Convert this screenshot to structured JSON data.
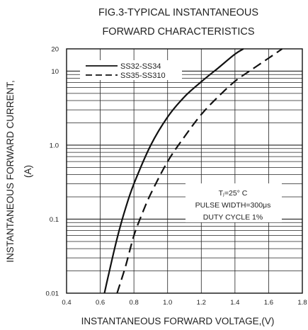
{
  "chart_data": {
    "type": "line",
    "title_lines": [
      "FIG.3-TYPICAL INSTANTANEOUS",
      "FORWARD CHARACTERISTICS"
    ],
    "xlabel": "INSTANTANEOUS FORWARD VOLTAGE,(V)",
    "ylabel_lines": [
      "INSTANTANEOUS FORWARD CURRENT,",
      "(A)"
    ],
    "xlim": [
      0.4,
      1.8
    ],
    "ylim": [
      0.01,
      20
    ],
    "yscale": "log",
    "x_ticks": [
      "0.4",
      "0.6",
      "0.8",
      "1.0",
      "1.2",
      "1.4",
      "1.6",
      "1.8"
    ],
    "y_ticks": [
      {
        "value": 0.01,
        "label": "0.01"
      },
      {
        "value": 0.1,
        "label": "0.1"
      },
      {
        "value": 1,
        "label": "1.0"
      },
      {
        "value": 10,
        "label": "10"
      },
      {
        "value": 20,
        "label": "20"
      }
    ],
    "grid": true,
    "legend_position": "top-left",
    "series": [
      {
        "name": "SS32-SS34",
        "style": "solid",
        "color": "#111111",
        "x": [
          0.625,
          0.65,
          0.7,
          0.75,
          0.8,
          0.9,
          1.0,
          1.1,
          1.2,
          1.3,
          1.4,
          1.45
        ],
        "y": [
          0.01,
          0.018,
          0.055,
          0.14,
          0.3,
          1.0,
          2.4,
          4.5,
          7.2,
          11,
          17,
          20
        ]
      },
      {
        "name": "SS35-SS310",
        "style": "dashed",
        "color": "#111111",
        "x": [
          0.7,
          0.75,
          0.8,
          0.85,
          0.9,
          1.0,
          1.1,
          1.2,
          1.3,
          1.4,
          1.5,
          1.6,
          1.68
        ],
        "y": [
          0.01,
          0.023,
          0.06,
          0.12,
          0.22,
          0.6,
          1.3,
          2.6,
          4.5,
          7.3,
          10.5,
          15,
          20
        ]
      }
    ],
    "annotation_lines": [
      "Tⱼ=25° C",
      "PULSE WIDTH=300μs",
      "DUTY CYCLE 1%"
    ]
  }
}
